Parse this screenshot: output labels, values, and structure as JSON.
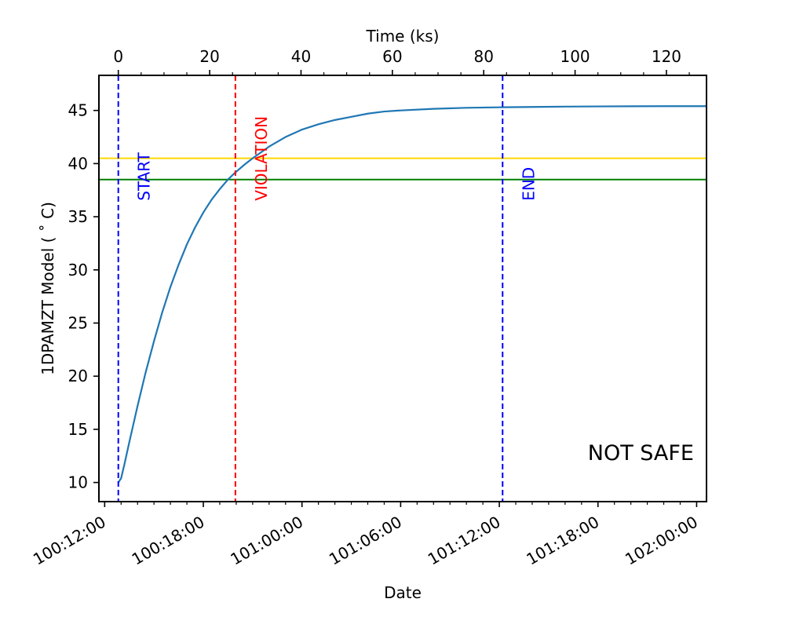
{
  "chart_data": {
    "type": "line",
    "title": "",
    "xlabel": "Date",
    "ylabel": "1DPAMZT Model ($^\\circ$C)",
    "ylabel_display": "1DPAMZT Model ( ˚ C)",
    "top_xlabel": "Time (ks)",
    "status_text": "NOT SAFE",
    "x_unit": "hours since 100:12:00",
    "xlim": [
      -0.35,
      36.6
    ],
    "ylim": [
      8.2,
      48.3
    ],
    "date_ticks": [
      {
        "x": 0,
        "label": "100:12:00"
      },
      {
        "x": 6,
        "label": "100:18:00"
      },
      {
        "x": 12,
        "label": "101:00:00"
      },
      {
        "x": 18,
        "label": "101:06:00"
      },
      {
        "x": 24,
        "label": "101:12:00"
      },
      {
        "x": 30,
        "label": "101:18:00"
      },
      {
        "x": 36,
        "label": "102:00:00"
      }
    ],
    "y_ticks": [
      10,
      15,
      20,
      25,
      30,
      35,
      40,
      45
    ],
    "time_ticks_ks": [
      0,
      20,
      40,
      60,
      80,
      100,
      120
    ],
    "time_zero_x": 0.83,
    "series": [
      {
        "color": "#1f77b4",
        "x": [
          0.83,
          1.0,
          1.2,
          1.5,
          2.0,
          2.5,
          3.0,
          3.5,
          4.0,
          4.5,
          5.0,
          5.5,
          6.0,
          6.5,
          7.0,
          7.5,
          7.9,
          8.5,
          9.0,
          10.0,
          11.0,
          12.0,
          13.0,
          14.0,
          15.0,
          16.0,
          17.0,
          18.0,
          20.0,
          22.0,
          24.2,
          26.0,
          28.0,
          30.0,
          32.0,
          34.0,
          36.6
        ],
        "y": [
          10.0,
          10.4,
          11.7,
          13.8,
          17.2,
          20.4,
          23.3,
          26.0,
          28.4,
          30.5,
          32.4,
          34.0,
          35.4,
          36.6,
          37.6,
          38.5,
          39.1,
          39.9,
          40.5,
          41.6,
          42.5,
          43.2,
          43.7,
          44.1,
          44.4,
          44.7,
          44.9,
          45.0,
          45.15,
          45.25,
          45.3,
          45.33,
          45.36,
          45.38,
          45.39,
          45.4,
          45.4
        ]
      }
    ],
    "hlines": [
      {
        "y": 40.5,
        "color": "#ffd700"
      },
      {
        "y": 38.5,
        "color": "#008000"
      }
    ],
    "vlines": [
      {
        "x": 0.83,
        "label": "START",
        "color": "#0000ff"
      },
      {
        "x": 7.95,
        "label": "VIOLATION",
        "color": "#ff0000"
      },
      {
        "x": 24.2,
        "label": "END",
        "color": "#0000ff"
      }
    ]
  }
}
